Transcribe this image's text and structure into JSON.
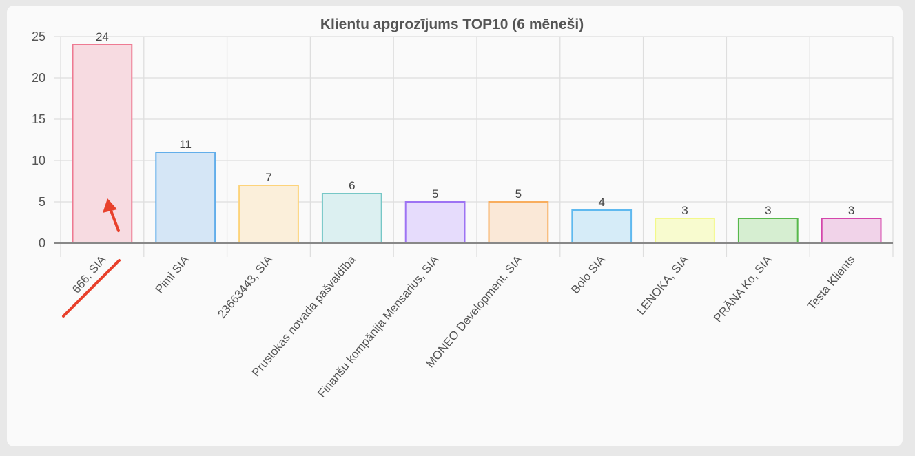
{
  "chart_data": {
    "type": "bar",
    "title": "Klientu apgrozījums TOP10 (6 mēneši)",
    "xlabel": "",
    "ylabel": "",
    "ylim": [
      0,
      25
    ],
    "yticks": [
      0,
      5,
      10,
      15,
      20,
      25
    ],
    "grid": true,
    "legend": "none",
    "categories": [
      "666, SIA",
      "Pimi SIA",
      "23663443, SIA",
      "Prustokas novada pašvaldība",
      "Finanšu kompānija Mensarius, SIA",
      "MONEO Development, SIA",
      "Bolo SIA",
      "LENOKA, SIA",
      "PRĀNA Ko, SIA",
      "Testa Klients"
    ],
    "values": [
      24,
      11,
      7,
      6,
      5,
      5,
      4,
      3,
      3,
      3
    ],
    "data_labels": [
      "24",
      "11",
      "7",
      "6",
      "5",
      "5",
      "4",
      "3",
      "3",
      "3"
    ],
    "colors": {
      "fills": [
        "#f7dbe1",
        "#d5e6f6",
        "#fbefda",
        "#dcf0f1",
        "#e6dcfc",
        "#fae8d7",
        "#d6ecf8",
        "#f8fbcf",
        "#d6eed1",
        "#f1d3e9"
      ],
      "borders": [
        "#ee7a92",
        "#62aeea",
        "#fdd37a",
        "#76c7c6",
        "#9d73f3",
        "#f8ad5d",
        "#5fb9ef",
        "#f3f88a",
        "#57b84b",
        "#d445ab"
      ],
      "annotation": "#e8412c"
    }
  }
}
